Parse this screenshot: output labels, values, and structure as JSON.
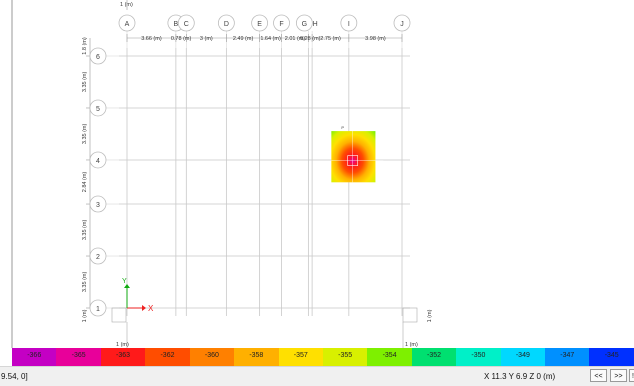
{
  "grid_x": [
    {
      "id": "A",
      "x": 0
    },
    {
      "id": "B",
      "x": 3.66
    },
    {
      "id": "C",
      "x": 4.44
    },
    {
      "id": "D",
      "x": 7.44
    },
    {
      "id": "E",
      "x": 9.93
    },
    {
      "id": "F",
      "x": 11.57
    },
    {
      "id": "G",
      "x": 13.58
    },
    {
      "id": "H",
      "x": 13.86
    },
    {
      "id": "I",
      "x": 16.61
    },
    {
      "id": "J",
      "x": 20.59
    }
  ],
  "grid_y": [
    {
      "id": "1",
      "y": 0
    },
    {
      "id": "2",
      "y": 3.35
    },
    {
      "id": "3",
      "y": 6.7
    },
    {
      "id": "4",
      "y": 9.54
    },
    {
      "id": "5",
      "y": 12.89
    },
    {
      "id": "6",
      "y": 16.24
    }
  ],
  "dims_x": [
    {
      "text": "3.66 (m)",
      "x": 1.83
    },
    {
      "text": "0.78 (m)",
      "x": 4.05
    },
    {
      "text": "3 (m)",
      "x": 5.94
    },
    {
      "text": "2.49 (m)",
      "x": 8.69
    },
    {
      "text": "1.64 (m)",
      "x": 10.75
    },
    {
      "text": "2.01 (m)",
      "x": 12.58
    },
    {
      "text": "0.28 (m)",
      "x": 13.72
    },
    {
      "text": "2.75 (m)",
      "x": 15.24
    },
    {
      "text": "3.98 (m)",
      "x": 18.6
    }
  ],
  "dims_y": [
    {
      "text": "3.35 (m)",
      "y": 1.68
    },
    {
      "text": "3.35 (m)",
      "y": 5.03
    },
    {
      "text": "2.84 (m)",
      "y": 8.12
    },
    {
      "text": "3.35 (m)",
      "y": 11.22
    },
    {
      "text": "3.35 (m)",
      "y": 14.57
    },
    {
      "text": "1.8 (m)",
      "y": 17.14
    }
  ],
  "edge_labels": {
    "top_left": "1 (m)",
    "bottom_left": "1 (m)",
    "bottom_right": "1 (m)",
    "left_side": "1 (m)",
    "right_side": "1 (m)"
  },
  "axis_labels": {
    "x": "X",
    "y": "Y"
  },
  "contour_patch": {
    "x_range": [
      15.3,
      18.6
    ],
    "y_range": [
      8.1,
      11.4
    ],
    "peak": {
      "x": 16.9,
      "y": 9.5
    },
    "pin_label": "P"
  },
  "legend": {
    "values": [
      "-366",
      "-365",
      "-363",
      "-362",
      "-360",
      "-358",
      "-357",
      "-355",
      "-354",
      "-352",
      "-350",
      "-349",
      "-347",
      "-345"
    ],
    "colors": [
      "#c400c4",
      "#e8009a",
      "#ff1a1a",
      "#ff4d00",
      "#ff8000",
      "#ffb000",
      "#ffe000",
      "#d8f000",
      "#7ef000",
      "#00e070",
      "#00f0c8",
      "#00d8ff",
      "#0090ff",
      "#0030ff"
    ]
  },
  "status": {
    "left_text": "9.54, 0]",
    "coords": "X 11.3  Y 6.9  Z 0 (m)",
    "prev_label": "<<",
    "next_label": ">>",
    "extra_label": "!"
  }
}
